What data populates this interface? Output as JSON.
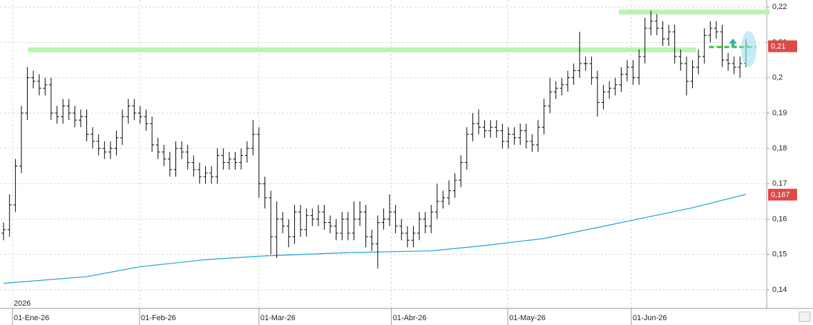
{
  "chart_data": {
    "type": "ohlc",
    "color": "#000000",
    "open": [
      0.156,
      0.157,
      0.164,
      0.175,
      0.19,
      0.2,
      0.199,
      0.197,
      0.198,
      0.19,
      0.189,
      0.192,
      0.19,
      0.188,
      0.189,
      0.184,
      0.182,
      0.18,
      0.179,
      0.18,
      0.183,
      0.189,
      0.192,
      0.19,
      0.189,
      0.187,
      0.181,
      0.179,
      0.177,
      0.174,
      0.18,
      0.179,
      0.176,
      0.174,
      0.172,
      0.173,
      0.172,
      0.178,
      0.176,
      0.177,
      0.176,
      0.178,
      0.18,
      0.184,
      0.17,
      0.166,
      0.155,
      0.16,
      0.158,
      0.155,
      0.162,
      0.157,
      0.161,
      0.16,
      0.162,
      0.159,
      0.158,
      0.156,
      0.16,
      0.156,
      0.16,
      0.162,
      0.155,
      0.153,
      0.159,
      0.16,
      0.162,
      0.158,
      0.156,
      0.154,
      0.156,
      0.16,
      0.158,
      0.162,
      0.165,
      0.166,
      0.168,
      0.171,
      0.176,
      0.184,
      0.187,
      0.186,
      0.185,
      0.186,
      0.185,
      0.182,
      0.184,
      0.183,
      0.185,
      0.182,
      0.181,
      0.186,
      0.192,
      0.196,
      0.197,
      0.198,
      0.2,
      0.202,
      0.204,
      0.204,
      0.2,
      0.193,
      0.196,
      0.197,
      0.198,
      0.201,
      0.203,
      0.2,
      0.206,
      0.214,
      0.216,
      0.214,
      0.211,
      0.213,
      0.206,
      0.204,
      0.199,
      0.203,
      0.206,
      0.212,
      0.214,
      0.213,
      0.205,
      0.204,
      0.203,
      0.204
    ],
    "high": [
      0.159,
      0.167,
      0.177,
      0.192,
      0.203,
      0.202,
      0.201,
      0.2,
      0.2,
      0.192,
      0.194,
      0.194,
      0.192,
      0.191,
      0.191,
      0.186,
      0.184,
      0.182,
      0.182,
      0.185,
      0.191,
      0.194,
      0.194,
      0.192,
      0.191,
      0.189,
      0.183,
      0.181,
      0.179,
      0.182,
      0.182,
      0.181,
      0.178,
      0.176,
      0.175,
      0.175,
      0.18,
      0.18,
      0.179,
      0.179,
      0.18,
      0.182,
      0.188,
      0.186,
      0.172,
      0.168,
      0.165,
      0.162,
      0.16,
      0.164,
      0.164,
      0.163,
      0.163,
      0.164,
      0.164,
      0.161,
      0.16,
      0.162,
      0.162,
      0.165,
      0.165,
      0.164,
      0.157,
      0.161,
      0.163,
      0.167,
      0.164,
      0.16,
      0.158,
      0.158,
      0.162,
      0.162,
      0.164,
      0.17,
      0.168,
      0.171,
      0.173,
      0.178,
      0.186,
      0.19,
      0.191,
      0.188,
      0.188,
      0.188,
      0.187,
      0.186,
      0.186,
      0.187,
      0.187,
      0.184,
      0.188,
      0.194,
      0.2,
      0.199,
      0.2,
      0.202,
      0.204,
      0.213,
      0.206,
      0.206,
      0.202,
      0.198,
      0.199,
      0.2,
      0.203,
      0.205,
      0.205,
      0.208,
      0.217,
      0.219,
      0.218,
      0.216,
      0.215,
      0.215,
      0.208,
      0.206,
      0.205,
      0.208,
      0.214,
      0.216,
      0.216,
      0.215,
      0.207,
      0.206,
      0.206,
      0.211
    ],
    "low": [
      0.154,
      0.155,
      0.162,
      0.173,
      0.188,
      0.197,
      0.195,
      0.195,
      0.188,
      0.187,
      0.187,
      0.188,
      0.186,
      0.186,
      0.182,
      0.18,
      0.178,
      0.177,
      0.177,
      0.178,
      0.181,
      0.187,
      0.188,
      0.187,
      0.185,
      0.179,
      0.177,
      0.175,
      0.172,
      0.172,
      0.177,
      0.174,
      0.172,
      0.17,
      0.17,
      0.17,
      0.17,
      0.174,
      0.174,
      0.174,
      0.174,
      0.176,
      0.178,
      0.166,
      0.163,
      0.15,
      0.149,
      0.156,
      0.152,
      0.153,
      0.155,
      0.155,
      0.158,
      0.158,
      0.157,
      0.156,
      0.154,
      0.154,
      0.154,
      0.154,
      0.158,
      0.152,
      0.151,
      0.146,
      0.157,
      0.158,
      0.156,
      0.154,
      0.152,
      0.152,
      0.154,
      0.156,
      0.156,
      0.16,
      0.163,
      0.164,
      0.166,
      0.169,
      0.174,
      0.182,
      0.184,
      0.183,
      0.183,
      0.183,
      0.18,
      0.18,
      0.181,
      0.181,
      0.18,
      0.179,
      0.179,
      0.184,
      0.19,
      0.194,
      0.195,
      0.196,
      0.198,
      0.2,
      0.202,
      0.198,
      0.189,
      0.191,
      0.194,
      0.195,
      0.196,
      0.199,
      0.198,
      0.198,
      0.204,
      0.212,
      0.212,
      0.209,
      0.209,
      0.204,
      0.202,
      0.195,
      0.197,
      0.201,
      0.204,
      0.21,
      0.211,
      0.203,
      0.202,
      0.201,
      0.2,
      0.203
    ],
    "close": [
      0.157,
      0.164,
      0.175,
      0.19,
      0.2,
      0.199,
      0.197,
      0.198,
      0.19,
      0.189,
      0.192,
      0.19,
      0.188,
      0.189,
      0.184,
      0.182,
      0.18,
      0.179,
      0.18,
      0.183,
      0.189,
      0.192,
      0.19,
      0.189,
      0.187,
      0.181,
      0.179,
      0.177,
      0.174,
      0.18,
      0.179,
      0.176,
      0.174,
      0.172,
      0.173,
      0.172,
      0.178,
      0.176,
      0.177,
      0.176,
      0.178,
      0.18,
      0.184,
      0.17,
      0.166,
      0.155,
      0.16,
      0.158,
      0.155,
      0.162,
      0.157,
      0.161,
      0.16,
      0.162,
      0.159,
      0.158,
      0.156,
      0.16,
      0.156,
      0.16,
      0.162,
      0.155,
      0.153,
      0.159,
      0.16,
      0.162,
      0.158,
      0.156,
      0.154,
      0.156,
      0.16,
      0.158,
      0.162,
      0.165,
      0.166,
      0.168,
      0.171,
      0.176,
      0.184,
      0.187,
      0.186,
      0.185,
      0.186,
      0.185,
      0.182,
      0.184,
      0.183,
      0.185,
      0.182,
      0.181,
      0.186,
      0.192,
      0.196,
      0.197,
      0.198,
      0.2,
      0.202,
      0.204,
      0.204,
      0.2,
      0.193,
      0.196,
      0.197,
      0.198,
      0.201,
      0.203,
      0.2,
      0.206,
      0.214,
      0.216,
      0.214,
      0.211,
      0.213,
      0.206,
      0.204,
      0.199,
      0.203,
      0.206,
      0.212,
      0.214,
      0.213,
      0.205,
      0.204,
      0.203,
      0.204,
      0.209
    ],
    "moving_average": {
      "color": "#1a9fd6",
      "x": [
        0,
        14,
        23,
        34,
        43,
        58,
        72,
        81,
        91,
        104,
        116,
        125
      ],
      "values": [
        0.1418,
        0.1437,
        0.1465,
        0.1485,
        0.1495,
        0.1505,
        0.151,
        0.1525,
        0.1545,
        0.159,
        0.1632,
        0.167
      ]
    },
    "levels": [
      {
        "y": 0.2079,
        "x": [
          4.1,
          116.6
        ],
        "color": "#b8f5b0",
        "dashed": false
      },
      {
        "y": 0.2186,
        "x": [
          103.6,
          129
        ],
        "color": "#b8f5b0",
        "dashed": false
      },
      {
        "y": 0.2087,
        "x": [
          118.8,
          126.7
        ],
        "color": "#22cc22",
        "dashed": true
      }
    ],
    "price_labels": [
      {
        "value": 0.209,
        "label": "0,21",
        "color": "#e04848"
      },
      {
        "value": 0.167,
        "label": "0,167",
        "color": "#e04848"
      }
    ],
    "year_label": "2026",
    "xlim": [
      -0.6,
      128.5
    ],
    "xticks": [
      {
        "value": 1.5,
        "label": "01-Ene-26"
      },
      {
        "value": 22.9,
        "label": "01-Feb-26"
      },
      {
        "value": 43,
        "label": "01-Mar-26"
      },
      {
        "value": 65.3,
        "label": "01-Abr-26"
      },
      {
        "value": 84.9,
        "label": "01-May-26"
      },
      {
        "value": 105.7,
        "label": "01-Jun-26"
      }
    ],
    "ylim": [
      0.1347,
      0.222
    ],
    "yticks": [
      {
        "value": 0.22,
        "label": "0,22"
      },
      {
        "value": 0.21,
        "label": "0,21"
      },
      {
        "value": 0.2,
        "label": "0,2"
      },
      {
        "value": 0.19,
        "label": "0,19"
      },
      {
        "value": 0.18,
        "label": "0,18"
      },
      {
        "value": 0.17,
        "label": "0,17"
      },
      {
        "value": 0.16,
        "label": "0,16"
      },
      {
        "value": 0.15,
        "label": "0,15"
      },
      {
        "value": 0.14,
        "label": "0,14"
      }
    ],
    "grid": true
  }
}
